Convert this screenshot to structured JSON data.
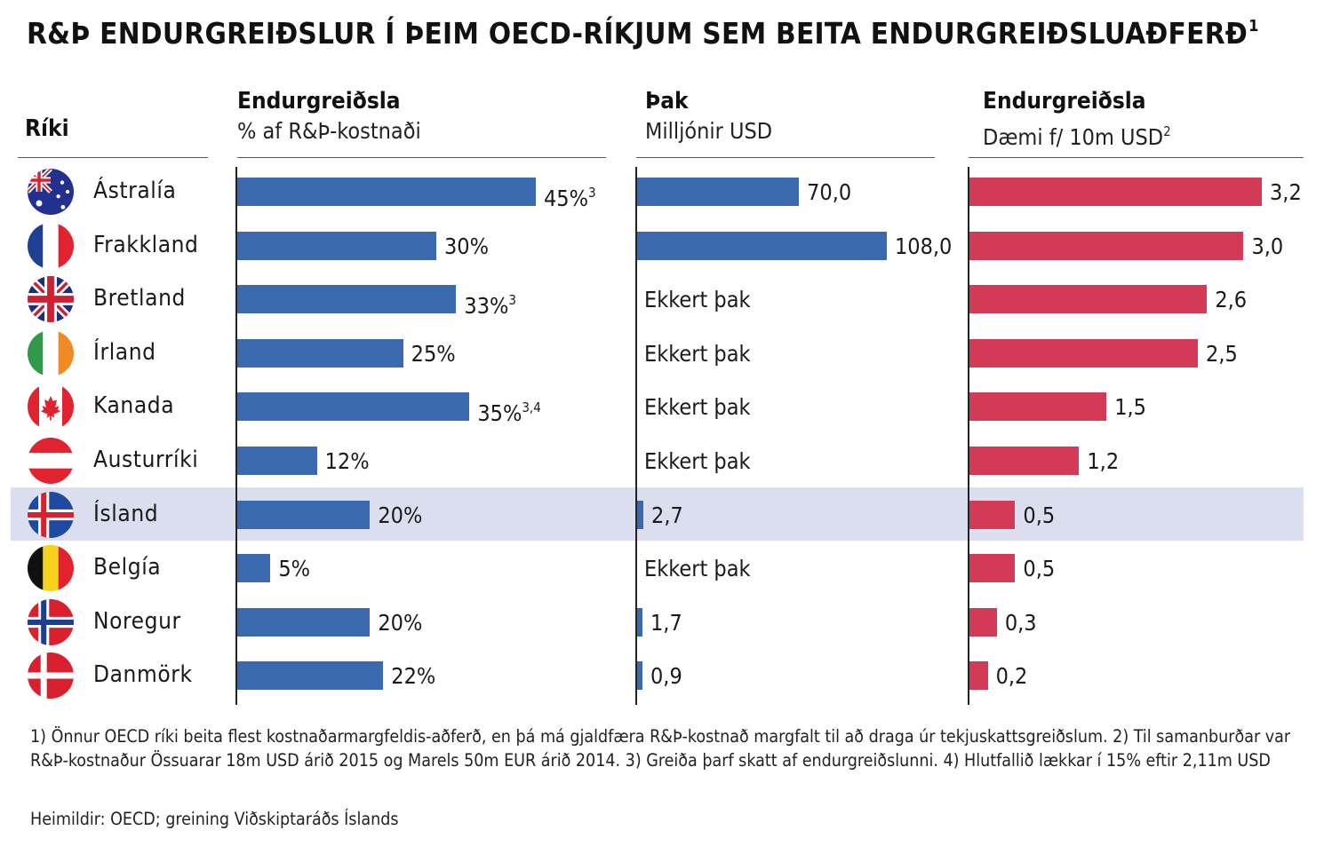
{
  "title": "R&Þ ENDURGREIÐSLUR Í ÞEIM OECD-RÍKJUM SEM BEITA ENDURGREIÐSLUAÐFERÐ",
  "title_note": "1",
  "headers": {
    "country": "Ríki",
    "rate_title": "Endurgreiðsla",
    "rate_unit": "% af R&Þ-kostnaði",
    "cap_title": "Þak",
    "cap_unit": "Milljónir USD",
    "example_title": "Endurgreiðsla",
    "example_unit": "Dæmi f/ 10m USD",
    "example_note": "2"
  },
  "highlight_country": "Ísland",
  "colors": {
    "blue": "#3a69b0",
    "red": "#d23a56",
    "highlight": "#dadeee"
  },
  "chart_data": [
    {
      "type": "bar",
      "orientation": "horizontal",
      "categories": [
        "Ástralía",
        "Frakkland",
        "Bretland",
        "Írland",
        "Kanada",
        "Austurríki",
        "Ísland",
        "Belgía",
        "Noregur",
        "Danmörk"
      ],
      "values": [
        45,
        30,
        33,
        25,
        35,
        12,
        20,
        5,
        20,
        22
      ],
      "labels": [
        "45%",
        "30%",
        "33%",
        "25%",
        "35%",
        "12%",
        "20%",
        "5%",
        "20%",
        "22%"
      ],
      "label_notes": [
        "3",
        "",
        "3",
        "",
        "3,4",
        "",
        "",
        "",
        "",
        ""
      ],
      "title": "Endurgreiðsla",
      "xlabel": "% af R&Þ-kostnaði",
      "color": "#3a69b0"
    },
    {
      "type": "bar",
      "orientation": "horizontal",
      "categories": [
        "Ástralía",
        "Frakkland",
        "Bretland",
        "Írland",
        "Kanada",
        "Austurríki",
        "Ísland",
        "Belgía",
        "Noregur",
        "Danmörk"
      ],
      "values": [
        70.0,
        108.0,
        null,
        null,
        null,
        null,
        2.7,
        null,
        1.7,
        0.9
      ],
      "labels": [
        "70,0",
        "108,0",
        "Ekkert þak",
        "Ekkert þak",
        "Ekkert þak",
        "Ekkert þak",
        "2,7",
        "Ekkert þak",
        "1,7",
        "0,9"
      ],
      "title": "Þak",
      "xlabel": "Milljónir USD",
      "color": "#3a69b0"
    },
    {
      "type": "bar",
      "orientation": "horizontal",
      "categories": [
        "Ástralía",
        "Frakkland",
        "Bretland",
        "Írland",
        "Kanada",
        "Austurríki",
        "Ísland",
        "Belgía",
        "Noregur",
        "Danmörk"
      ],
      "values": [
        3.2,
        3.0,
        2.6,
        2.5,
        1.5,
        1.2,
        0.5,
        0.5,
        0.3,
        0.2
      ],
      "labels": [
        "3,2",
        "3,0",
        "2,6",
        "2,5",
        "1,5",
        "1,2",
        "0,5",
        "0,5",
        "0,3",
        "0,2"
      ],
      "title": "Endurgreiðsla",
      "xlabel": "Dæmi f/ 10m USD",
      "color": "#d23a56"
    }
  ],
  "countries": [
    {
      "name": "Ástralía",
      "flag": "australia-flag-icon"
    },
    {
      "name": "Frakkland",
      "flag": "france-flag-icon"
    },
    {
      "name": "Bretland",
      "flag": "uk-flag-icon"
    },
    {
      "name": "Írland",
      "flag": "ireland-flag-icon"
    },
    {
      "name": "Kanada",
      "flag": "canada-flag-icon"
    },
    {
      "name": "Austurríki",
      "flag": "austria-flag-icon"
    },
    {
      "name": "Ísland",
      "flag": "iceland-flag-icon"
    },
    {
      "name": "Belgía",
      "flag": "belgium-flag-icon"
    },
    {
      "name": "Noregur",
      "flag": "norway-flag-icon"
    },
    {
      "name": "Danmörk",
      "flag": "denmark-flag-icon"
    }
  ],
  "footnote": "1) Önnur OECD ríki beita flest kostnaðarmargfeldis-aðferð, en þá má gjaldfæra R&Þ-kostnað margfalt til að draga úr tekjuskattsgreiðslum. 2) Til samanburðar var R&Þ-kostnaður Össuarar 18m USD árið 2015 og Marels 50m EUR árið 2014. 3) Greiða þarf skatt af endurgreiðslunni. 4) Hlutfallið lækkar í 15% eftir 2,11m  USD",
  "source": "Heimildir: OECD; greining Viðskiptaráðs Íslands"
}
